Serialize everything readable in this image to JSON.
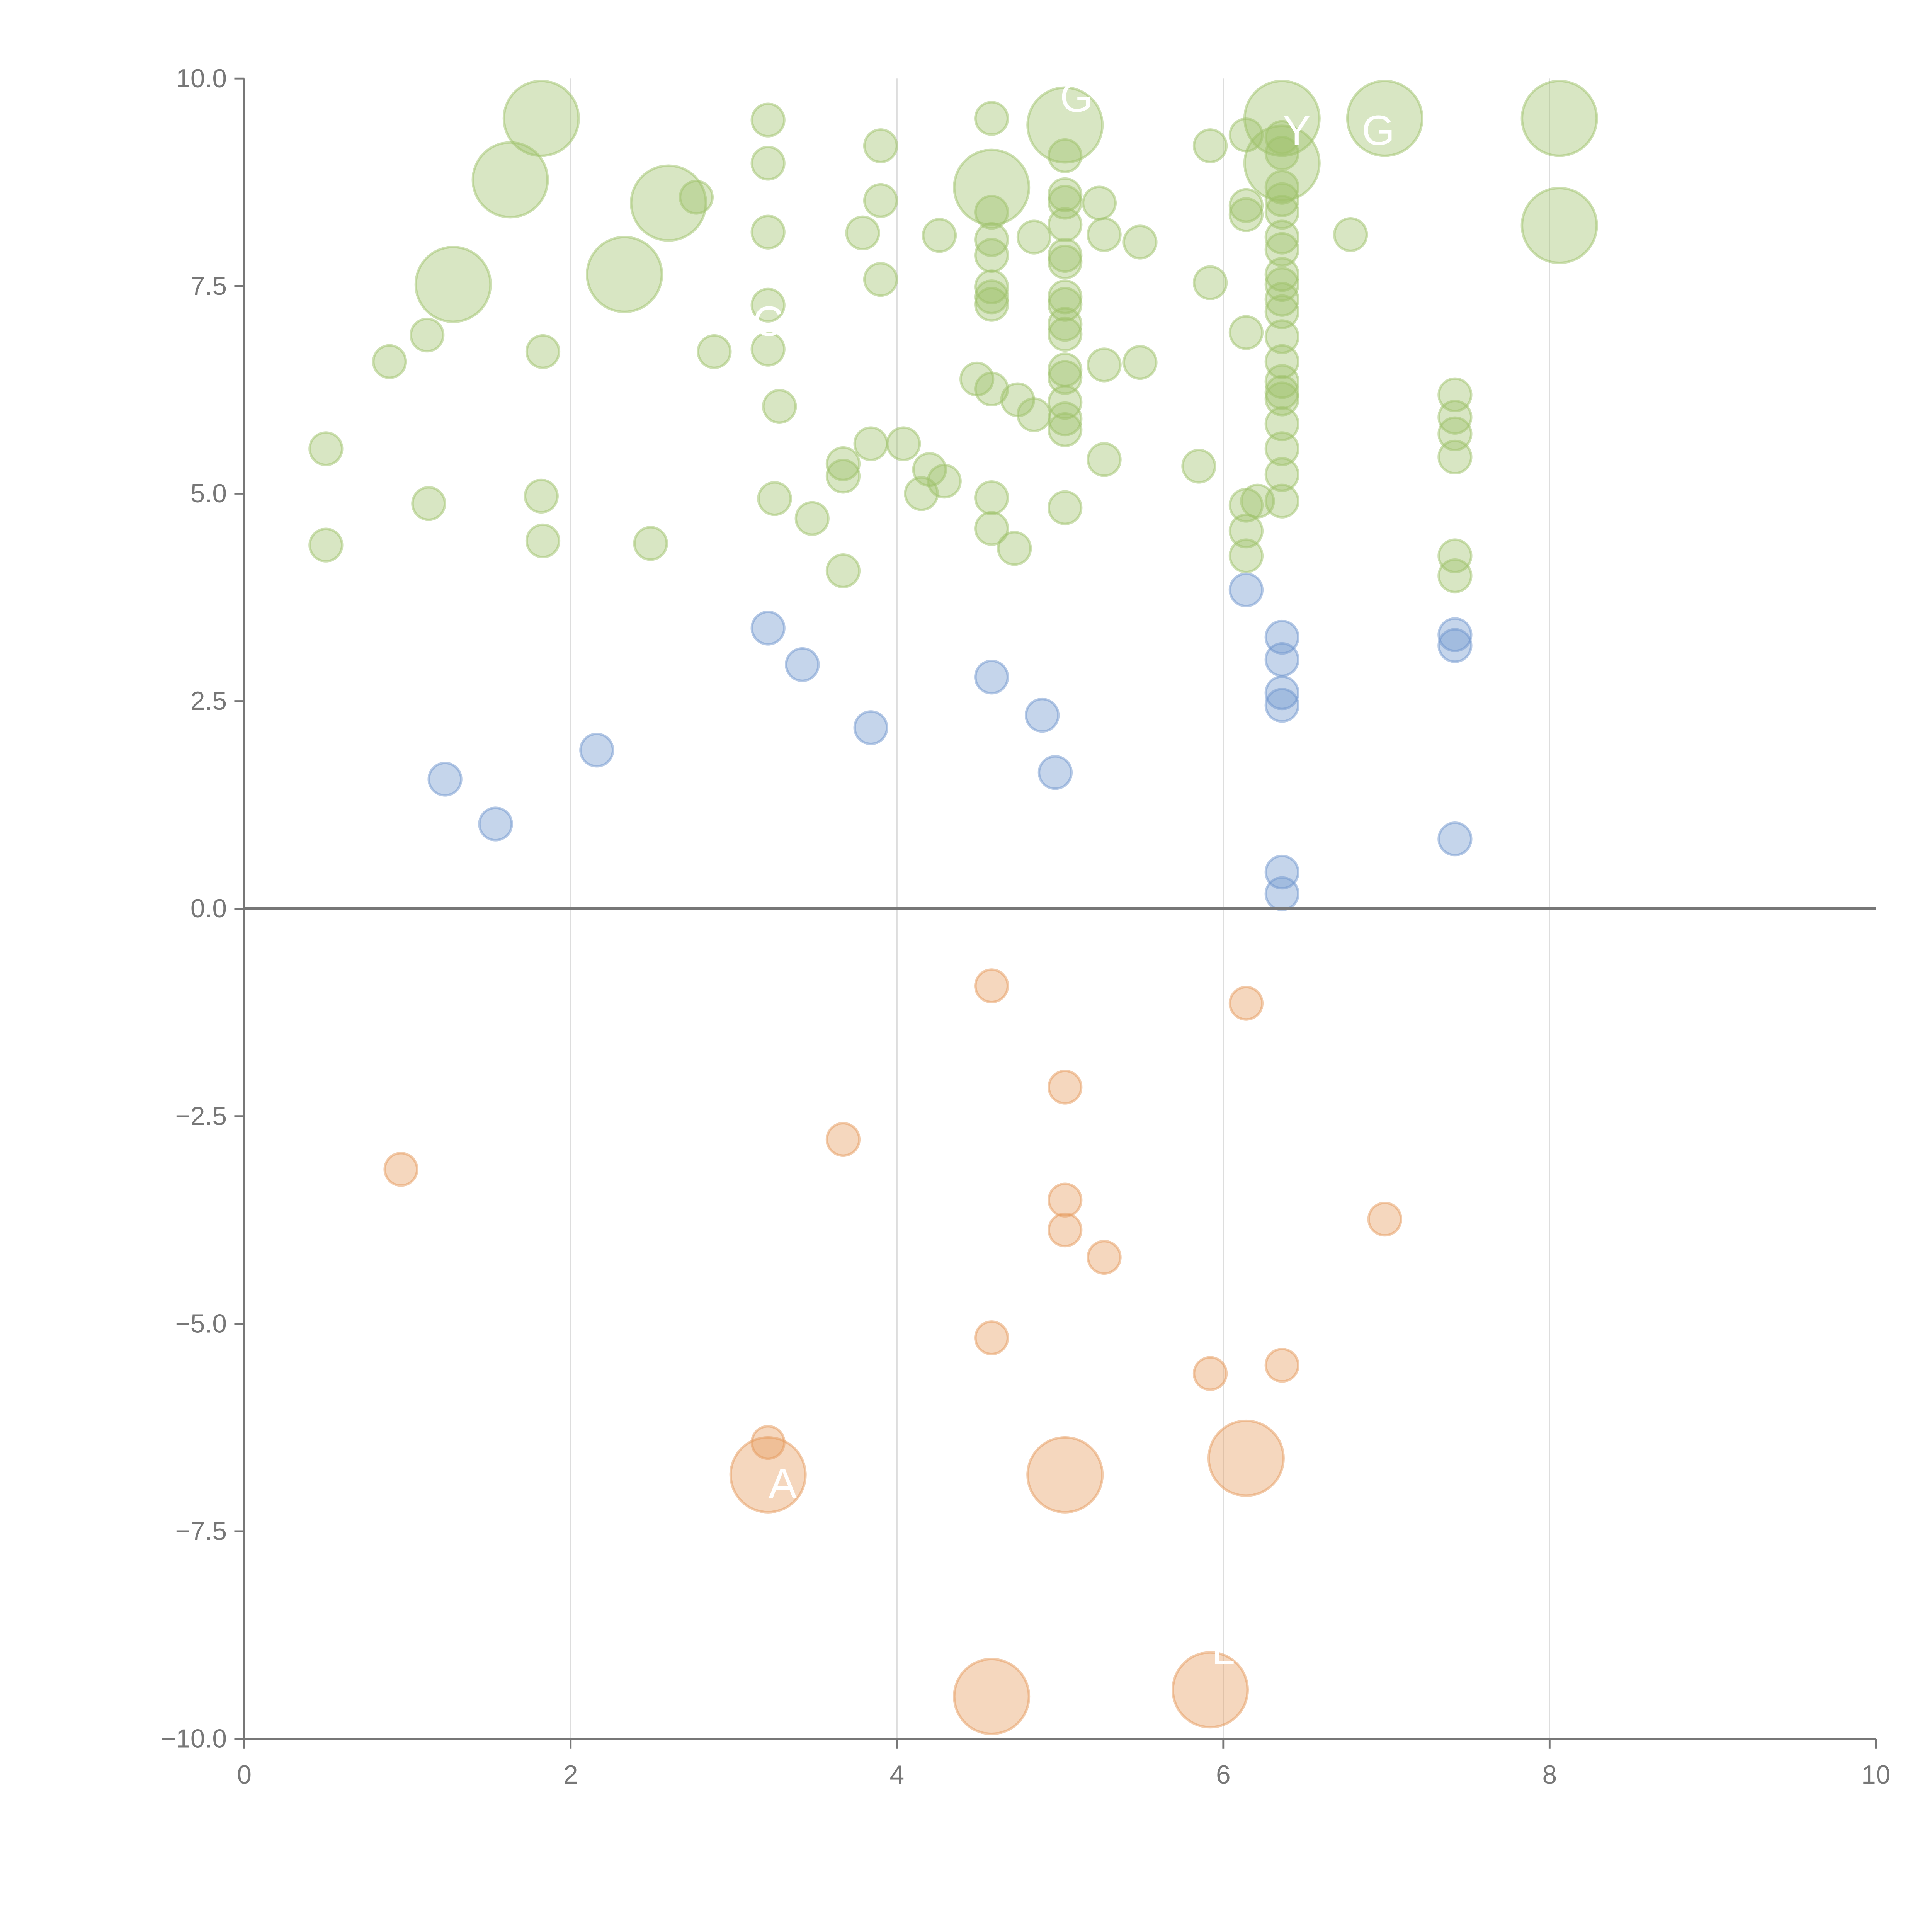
{
  "chart_data": {
    "type": "scatter",
    "title": "",
    "xlabel": "",
    "ylabel": "",
    "xlim": [
      0,
      10
    ],
    "ylim": [
      -10,
      10
    ],
    "xticks": [
      "0",
      "2",
      "4",
      "6",
      "8",
      "10"
    ],
    "yticks": [
      "10.0",
      "7.5",
      "5.0",
      "2.5",
      "0.0",
      "−2.5",
      "−5.0",
      "−7.5",
      "−10.0"
    ],
    "grid": "vertical",
    "legend": "none",
    "series": [
      {
        "name": "green",
        "color": "#9dc16a",
        "points": [
          [
            1.82,
            9.52,
            2
          ],
          [
            1.63,
            8.78,
            2
          ],
          [
            1.28,
            7.52,
            2
          ],
          [
            2.33,
            7.64,
            2
          ],
          [
            2.6,
            8.5,
            2
          ],
          [
            2.77,
            8.57,
            1
          ],
          [
            3.21,
            9.5,
            1
          ],
          [
            3.21,
            8.98,
            1
          ],
          [
            3.21,
            8.15,
            1
          ],
          [
            3.21,
            7.27,
            1
          ],
          [
            3.21,
            6.74,
            1
          ],
          [
            3.28,
            6.05,
            1
          ],
          [
            2.88,
            6.71,
            1
          ],
          [
            1.83,
            6.71,
            1
          ],
          [
            0.89,
            6.59,
            1
          ],
          [
            1.12,
            6.91,
            1
          ],
          [
            0.5,
            5.54,
            1
          ],
          [
            0.5,
            4.38,
            1
          ],
          [
            1.13,
            4.88,
            1
          ],
          [
            1.82,
            4.97,
            1
          ],
          [
            1.83,
            4.43,
            1
          ],
          [
            2.49,
            4.4,
            1
          ],
          [
            3.25,
            4.94,
            1
          ],
          [
            3.48,
            4.7,
            1
          ],
          [
            3.67,
            4.07,
            1
          ],
          [
            3.67,
            5.21,
            1
          ],
          [
            3.67,
            5.36,
            1
          ],
          [
            3.84,
            5.6,
            1
          ],
          [
            4.04,
            5.6,
            1
          ],
          [
            4.15,
            5.0,
            1
          ],
          [
            4.2,
            5.29,
            1
          ],
          [
            4.29,
            5.15,
            1
          ],
          [
            3.9,
            9.19,
            1
          ],
          [
            3.9,
            8.53,
            1
          ],
          [
            3.9,
            7.58,
            1
          ],
          [
            3.79,
            8.14,
            1
          ],
          [
            4.26,
            8.11,
            1
          ],
          [
            4.58,
            9.52,
            1
          ],
          [
            4.58,
            8.69,
            2
          ],
          [
            4.58,
            8.39,
            1
          ],
          [
            4.58,
            8.06,
            1
          ],
          [
            4.58,
            7.87,
            1
          ],
          [
            4.58,
            7.49,
            1
          ],
          [
            4.58,
            7.37,
            1
          ],
          [
            4.58,
            7.28,
            1
          ],
          [
            4.49,
            6.38,
            1
          ],
          [
            4.58,
            6.26,
            1
          ],
          [
            4.74,
            6.13,
            1
          ],
          [
            4.84,
            5.95,
            1
          ],
          [
            4.58,
            4.95,
            1
          ],
          [
            4.58,
            4.58,
            1
          ],
          [
            4.72,
            4.34,
            1
          ],
          [
            4.84,
            8.09,
            1
          ],
          [
            5.03,
            9.44,
            2
          ],
          [
            5.03,
            9.07,
            1
          ],
          [
            5.03,
            8.6,
            1
          ],
          [
            5.03,
            8.51,
            1
          ],
          [
            5.03,
            8.24,
            1
          ],
          [
            5.03,
            7.87,
            1
          ],
          [
            5.03,
            7.79,
            1
          ],
          [
            5.03,
            7.37,
            1
          ],
          [
            5.03,
            7.28,
            1
          ],
          [
            5.03,
            7.04,
            1
          ],
          [
            5.03,
            6.92,
            1
          ],
          [
            5.03,
            6.49,
            1
          ],
          [
            5.03,
            6.4,
            1
          ],
          [
            5.03,
            6.1,
            1
          ],
          [
            5.03,
            5.9,
            1
          ],
          [
            5.03,
            5.77,
            1
          ],
          [
            5.03,
            4.83,
            1
          ],
          [
            5.24,
            8.5,
            1
          ],
          [
            5.27,
            8.12,
            1
          ],
          [
            5.27,
            6.55,
            1
          ],
          [
            5.27,
            5.41,
            1
          ],
          [
            5.49,
            8.03,
            1
          ],
          [
            5.49,
            6.58,
            1
          ],
          [
            5.85,
            5.33,
            1
          ],
          [
            5.92,
            9.19,
            1
          ],
          [
            5.92,
            7.54,
            1
          ],
          [
            6.14,
            9.32,
            1
          ],
          [
            6.14,
            8.47,
            1
          ],
          [
            6.14,
            8.36,
            1
          ],
          [
            6.14,
            6.94,
            1
          ],
          [
            6.14,
            4.86,
            1
          ],
          [
            6.14,
            4.55,
            1
          ],
          [
            6.14,
            4.25,
            1
          ],
          [
            6.21,
            4.91,
            1
          ],
          [
            6.36,
            9.52,
            2
          ],
          [
            6.36,
            8.98,
            2
          ],
          [
            6.36,
            9.29,
            1
          ],
          [
            6.36,
            9.1,
            1
          ],
          [
            6.36,
            8.69,
            1
          ],
          [
            6.36,
            8.54,
            1
          ],
          [
            6.36,
            8.39,
            1
          ],
          [
            6.36,
            8.09,
            1
          ],
          [
            6.36,
            7.94,
            1
          ],
          [
            6.36,
            7.64,
            1
          ],
          [
            6.36,
            7.52,
            1
          ],
          [
            6.36,
            7.34,
            1
          ],
          [
            6.36,
            7.19,
            1
          ],
          [
            6.36,
            6.89,
            1
          ],
          [
            6.36,
            6.59,
            1
          ],
          [
            6.36,
            6.35,
            1
          ],
          [
            6.36,
            6.22,
            1
          ],
          [
            6.36,
            6.14,
            1
          ],
          [
            6.36,
            5.84,
            1
          ],
          [
            6.36,
            5.54,
            1
          ],
          [
            6.36,
            5.23,
            1
          ],
          [
            6.36,
            4.91,
            1
          ],
          [
            6.78,
            8.12,
            1
          ],
          [
            6.99,
            9.52,
            2
          ],
          [
            7.42,
            6.19,
            1
          ],
          [
            7.42,
            5.92,
            1
          ],
          [
            7.42,
            5.72,
            1
          ],
          [
            7.42,
            5.44,
            1
          ],
          [
            7.42,
            4.25,
            1
          ],
          [
            7.42,
            4.01,
            1
          ],
          [
            8.06,
            9.52,
            2
          ],
          [
            8.06,
            8.23,
            2
          ]
        ]
      },
      {
        "name": "blue",
        "color": "#6f96cd",
        "points": [
          [
            1.23,
            1.56,
            1
          ],
          [
            1.54,
            1.02,
            1
          ],
          [
            2.16,
            1.91,
            1
          ],
          [
            3.21,
            3.38,
            1
          ],
          [
            3.42,
            2.94,
            1
          ],
          [
            3.84,
            2.18,
            1
          ],
          [
            4.58,
            2.79,
            1
          ],
          [
            4.89,
            2.33,
            1
          ],
          [
            4.97,
            1.64,
            1
          ],
          [
            6.14,
            3.84,
            1
          ],
          [
            6.36,
            3.27,
            1
          ],
          [
            6.36,
            3.0,
            1
          ],
          [
            6.36,
            2.6,
            1
          ],
          [
            6.36,
            2.45,
            1
          ],
          [
            6.36,
            0.44,
            1
          ],
          [
            6.36,
            0.18,
            1
          ],
          [
            7.42,
            3.3,
            1
          ],
          [
            7.42,
            3.17,
            1
          ],
          [
            7.42,
            0.84,
            1
          ]
        ]
      },
      {
        "name": "orange",
        "color": "#e59a5c",
        "points": [
          [
            0.96,
            -3.14,
            1
          ],
          [
            3.67,
            -2.78,
            1
          ],
          [
            4.58,
            -0.93,
            1
          ],
          [
            5.03,
            -2.15,
            1
          ],
          [
            5.03,
            -3.51,
            1
          ],
          [
            5.03,
            -3.87,
            1
          ],
          [
            5.27,
            -4.2,
            1
          ],
          [
            6.14,
            -1.14,
            1
          ],
          [
            6.99,
            -3.74,
            1
          ],
          [
            4.58,
            -5.17,
            1
          ],
          [
            5.92,
            -5.6,
            1
          ],
          [
            6.36,
            -5.5,
            1
          ],
          [
            3.21,
            -6.43,
            1
          ],
          [
            3.21,
            -6.82,
            2
          ],
          [
            5.03,
            -6.82,
            2
          ],
          [
            6.14,
            -6.62,
            2
          ],
          [
            4.58,
            -9.49,
            2
          ],
          [
            5.92,
            -9.41,
            2
          ]
        ]
      }
    ],
    "labels": [
      {
        "text": "G",
        "x": 5.1,
        "y": 9.6
      },
      {
        "text": "Y",
        "x": 6.45,
        "y": 9.2
      },
      {
        "text": "G",
        "x": 6.95,
        "y": 9.2
      },
      {
        "text": "C",
        "x": 3.21,
        "y": 6.9
      },
      {
        "text": "A",
        "x": 3.3,
        "y": -7.1
      },
      {
        "text": "L",
        "x": 6.0,
        "y": -9.1
      }
    ]
  }
}
